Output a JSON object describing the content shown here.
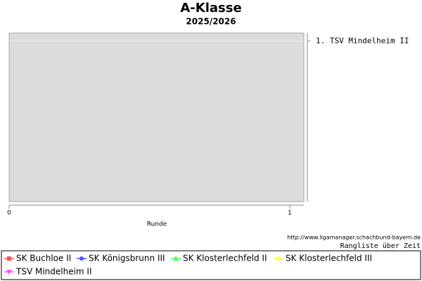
{
  "chart_data": {
    "type": "line",
    "title": "A-Klasse",
    "subtitle": "2025/2026",
    "x_label": "Runde",
    "source": "http://www.ligamanager.schachbund-bayern.de",
    "caption": "Rangliste über Zeit",
    "x": [],
    "xlim": [
      0,
      1.05
    ],
    "xticks": [
      0,
      1
    ],
    "y2lim": [
      11,
      0.5
    ],
    "y2ticks": [
      {
        "value": 1,
        "label": "1. TSV Mindelheim II"
      }
    ],
    "grid": true,
    "series": [
      {
        "name": "SK Buchloe II",
        "color": "#ff5050",
        "values": [],
        "axis": "y2"
      },
      {
        "name": "SK Königsbrunn III",
        "color": "#5050ff",
        "values": [],
        "axis": "y2"
      },
      {
        "name": "SK Klosterlechfeld II",
        "color": "#50ff50",
        "values": [],
        "axis": "y2"
      },
      {
        "name": "SK Klosterlechfeld III",
        "color": "#ffff50",
        "values": [],
        "axis": "y2"
      },
      {
        "name": "TSV Mindelheim II",
        "color": "#ff50ff",
        "values": [],
        "axis": "y2"
      }
    ]
  }
}
